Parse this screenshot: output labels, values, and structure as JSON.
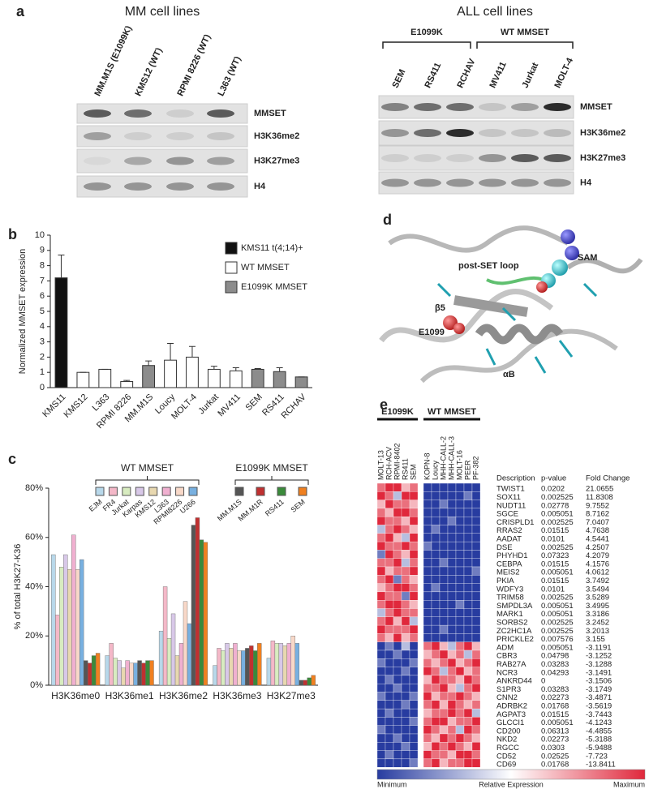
{
  "panel_a": {
    "label": "a",
    "mm": {
      "title": "MM cell lines",
      "lanes": [
        "MM.M1S (E1099K)",
        "KMS12 (WT)",
        "RPMI 8226 (WT)",
        "L363 (WT)"
      ],
      "rows": [
        "MMSET",
        "H3K36me2",
        "H3K27me3",
        "H4"
      ]
    },
    "all": {
      "title": "ALL cell lines",
      "groups": [
        {
          "title": "E1099K",
          "lanes": [
            "SEM",
            "RS411",
            "RCHAV"
          ]
        },
        {
          "title": "WT MMSET",
          "lanes": [
            "MV411",
            "Jurkat",
            "MOLT-4"
          ]
        }
      ],
      "rows": [
        "MMSET",
        "H3K36me2",
        "H3K27me3",
        "H4"
      ]
    }
  },
  "chart_data": [
    {
      "type": "bar",
      "label": "b",
      "ylabel": "Normalized MMSET expression",
      "categories": [
        "KMS11",
        "KMS12",
        "L363",
        "RPMI 8226",
        "MM.M1S",
        "Loucy",
        "MOLT-4",
        "Jurkat",
        "MV411",
        "SEM",
        "RS411",
        "RCHAV"
      ],
      "series": [
        {
          "name": "KMS11 t(4;14)+",
          "color": "#111111",
          "values": [
            7.2,
            null,
            null,
            null,
            null,
            null,
            null,
            null,
            null,
            null,
            null,
            null
          ],
          "errors": [
            1.5,
            null,
            null,
            null,
            null,
            null,
            null,
            null,
            null,
            null,
            null,
            null
          ]
        },
        {
          "name": "WT MMSET",
          "color": "#ffffff",
          "values": [
            null,
            1.0,
            1.2,
            0.4,
            null,
            1.8,
            2.0,
            1.2,
            1.1,
            null,
            null,
            null
          ],
          "errors": [
            null,
            0,
            0,
            0.07,
            null,
            1.1,
            0.7,
            0.2,
            0.2,
            null,
            null,
            null
          ]
        },
        {
          "name": "E1099K MMSET",
          "color": "#8c8c8c",
          "values": [
            null,
            null,
            null,
            null,
            1.45,
            null,
            null,
            null,
            null,
            1.2,
            1.05,
            0.7
          ],
          "errors": [
            null,
            null,
            null,
            null,
            0.3,
            null,
            null,
            null,
            null,
            0.05,
            0.25,
            0
          ]
        }
      ],
      "ylim": [
        0,
        10
      ],
      "yticks": [
        0,
        1,
        2,
        3,
        4,
        5,
        6,
        7,
        8,
        9,
        10
      ]
    },
    {
      "type": "bar",
      "label": "c",
      "ylabel": "% of total H3K27-K36",
      "categories": [
        "H3K36me0",
        "H3K36me1",
        "H3K36me2",
        "H3K36me3",
        "H3K27me3"
      ],
      "series_groups": [
        {
          "title": "WT MMSET",
          "series": [
            {
              "name": "EJM",
              "color": "#b8d8ea",
              "values": [
                53,
                12,
                22,
                8,
                11
              ]
            },
            {
              "name": "FR4",
              "color": "#f4b8c8",
              "values": [
                28.5,
                17,
                40,
                15,
                18
              ]
            },
            {
              "name": "Jurkat",
              "color": "#d8ecc0",
              "values": [
                48,
                11,
                19,
                14,
                17
              ]
            },
            {
              "name": "Karpas",
              "color": "#d8c8e8",
              "values": [
                53,
                10,
                29,
                17,
                17
              ]
            },
            {
              "name": "KMS12",
              "color": "#e8d8b0",
              "values": [
                47,
                7,
                12,
                15,
                16
              ]
            },
            {
              "name": "L363",
              "color": "#f0b0d0",
              "values": [
                61,
                10,
                17,
                17,
                17
              ]
            },
            {
              "name": "RPMI8226",
              "color": "#f8d8c8",
              "values": [
                47,
                9,
                34,
                14,
                20
              ]
            },
            {
              "name": "U266",
              "color": "#78b0e0",
              "values": [
                51,
                9,
                25,
                14,
                17
              ]
            }
          ]
        },
        {
          "title": "E1099K MMSET",
          "series": [
            {
              "name": "MM.M1S",
              "color": "#555555",
              "values": [
                10,
                10,
                65,
                15,
                2
              ]
            },
            {
              "name": "MM.M1R",
              "color": "#c03030",
              "values": [
                9,
                9,
                68,
                16,
                2
              ]
            },
            {
              "name": "RS411",
              "color": "#3a8a3a",
              "values": [
                12,
                10,
                59,
                14,
                3
              ]
            },
            {
              "name": "SEM",
              "color": "#f08020",
              "values": [
                13,
                10,
                58,
                17,
                4
              ]
            }
          ]
        }
      ],
      "ylim": [
        0,
        80
      ],
      "yticks": [
        {
          "value": 0,
          "label": "0%"
        },
        {
          "value": 20,
          "label": "20%"
        },
        {
          "value": 40,
          "label": "40%"
        },
        {
          "value": 60,
          "label": "60%"
        },
        {
          "value": 80,
          "label": "80%"
        }
      ]
    },
    {
      "type": "heatmap",
      "label": "e",
      "column_groups": [
        {
          "title": "E1099K",
          "columns": [
            "MOLT-13",
            "RCH-ACV",
            "RPMI-8402",
            "RS411",
            "SEM"
          ]
        },
        {
          "title": "WT MMSET",
          "columns": [
            "KOPN-8",
            "Loucy",
            "MHH-CALL-2",
            "MHH-CALL-3",
            "MOLT-16",
            "PEER",
            "PF-382"
          ]
        }
      ],
      "headers": [
        "Description",
        "p-value",
        "Fold Change"
      ],
      "rows": [
        {
          "gene": "TWIST1",
          "p_value": 0.0202,
          "fold_change": 21.0655
        },
        {
          "gene": "SOX11",
          "p_value": 0.002525,
          "fold_change": 11.8308
        },
        {
          "gene": "NUDT11",
          "p_value": 0.02778,
          "fold_change": 9.7552
        },
        {
          "gene": "SGCE",
          "p_value": 0.005051,
          "fold_change": 8.7162
        },
        {
          "gene": "CRISPLD1",
          "p_value": 0.002525,
          "fold_change": 7.0407
        },
        {
          "gene": "RRAS2",
          "p_value": 0.01515,
          "fold_change": 4.7638
        },
        {
          "gene": "AADAT",
          "p_value": 0.0101,
          "fold_change": 4.5441
        },
        {
          "gene": "DSE",
          "p_value": 0.002525,
          "fold_change": 4.2507
        },
        {
          "gene": "PHYHD1",
          "p_value": 0.07323,
          "fold_change": 4.2079
        },
        {
          "gene": "CEBPA",
          "p_value": 0.01515,
          "fold_change": 4.1576
        },
        {
          "gene": "MEIS2",
          "p_value": 0.005051,
          "fold_change": 4.0612
        },
        {
          "gene": "PKIA",
          "p_value": 0.01515,
          "fold_change": 3.7492
        },
        {
          "gene": "WDFY3",
          "p_value": 0.0101,
          "fold_change": 3.5494
        },
        {
          "gene": "TRIM58",
          "p_value": 0.002525,
          "fold_change": 3.5289
        },
        {
          "gene": "SMPDL3A",
          "p_value": 0.005051,
          "fold_change": 3.4995
        },
        {
          "gene": "MARK1",
          "p_value": 0.005051,
          "fold_change": 3.3186
        },
        {
          "gene": "SORBS2",
          "p_value": 0.002525,
          "fold_change": 3.2452
        },
        {
          "gene": "ZC2HC1A",
          "p_value": 0.002525,
          "fold_change": 3.2013
        },
        {
          "gene": "PRICKLE2",
          "p_value": 0.007576,
          "fold_change": 3.155
        },
        {
          "gene": "ADM",
          "p_value": 0.005051,
          "fold_change": -3.1191
        },
        {
          "gene": "CBR3",
          "p_value": 0.04798,
          "fold_change": -3.1252
        },
        {
          "gene": "RAB27A",
          "p_value": 0.03283,
          "fold_change": -3.1288
        },
        {
          "gene": "NCR3",
          "p_value": 0.04293,
          "fold_change": -3.1491
        },
        {
          "gene": "ANKRD44",
          "p_value": 0,
          "fold_change": -3.1506
        },
        {
          "gene": "S1PR3",
          "p_value": 0.03283,
          "fold_change": -3.1749
        },
        {
          "gene": "CNN2",
          "p_value": 0.02273,
          "fold_change": -3.4871
        },
        {
          "gene": "ADRBK2",
          "p_value": 0.01768,
          "fold_change": -3.5619
        },
        {
          "gene": "AGPAT3",
          "p_value": 0.01515,
          "fold_change": -3.7443
        },
        {
          "gene": "GLCCI1",
          "p_value": 0.005051,
          "fold_change": -4.1243
        },
        {
          "gene": "CD200",
          "p_value": 0.06313,
          "fold_change": -4.4855
        },
        {
          "gene": "NKD2",
          "p_value": 0.02273,
          "fold_change": -5.3188
        },
        {
          "gene": "RGCC",
          "p_value": 0.0303,
          "fold_change": -5.9488
        },
        {
          "gene": "CD52",
          "p_value": 0.02525,
          "fold_change": -7.723
        },
        {
          "gene": "CD69",
          "p_value": 0.01768,
          "fold_change": -13.8411
        }
      ],
      "values": [
        [
          2,
          3,
          3,
          1,
          2,
          -3,
          -3,
          -3,
          -3,
          -3,
          -3,
          -3
        ],
        [
          3,
          2,
          -1,
          3,
          3,
          -3,
          -3,
          -3,
          -3,
          -3,
          -2,
          -3
        ],
        [
          1,
          3,
          2,
          2,
          1,
          -3,
          -3,
          -2,
          -3,
          -3,
          -3,
          -3
        ],
        [
          2,
          1,
          3,
          3,
          2,
          -3,
          -3,
          -3,
          -3,
          -3,
          -3,
          -3
        ],
        [
          3,
          2,
          2,
          1,
          3,
          -3,
          -3,
          -3,
          -2,
          -3,
          -3,
          -3
        ],
        [
          -1,
          2,
          3,
          2,
          1,
          -3,
          -2,
          -3,
          -3,
          -3,
          -3,
          -3
        ],
        [
          2,
          3,
          1,
          -1,
          3,
          -3,
          -3,
          -3,
          -3,
          -3,
          -3,
          -3
        ],
        [
          3,
          2,
          2,
          3,
          2,
          -2,
          -3,
          -3,
          -3,
          -3,
          -3,
          -3
        ],
        [
          -2,
          3,
          2,
          1,
          3,
          -3,
          -3,
          -3,
          -3,
          -3,
          -3,
          -3
        ],
        [
          2,
          2,
          3,
          -1,
          2,
          -3,
          -3,
          -2,
          -3,
          -3,
          -3,
          -3
        ],
        [
          3,
          1,
          2,
          2,
          3,
          -3,
          -3,
          -3,
          -3,
          -3,
          -3,
          -2
        ],
        [
          2,
          3,
          -2,
          2,
          1,
          -3,
          -3,
          -3,
          -3,
          -3,
          -3,
          -3
        ],
        [
          1,
          2,
          3,
          3,
          2,
          -3,
          -2,
          -3,
          -3,
          -3,
          -3,
          -3
        ],
        [
          3,
          2,
          2,
          -2,
          3,
          -3,
          -3,
          -3,
          -3,
          -3,
          -3,
          -3
        ],
        [
          2,
          3,
          3,
          2,
          1,
          -3,
          -3,
          -3,
          -3,
          -2,
          -3,
          -3
        ],
        [
          -1,
          2,
          3,
          2,
          2,
          -3,
          -3,
          -3,
          -3,
          -3,
          -3,
          -3
        ],
        [
          2,
          3,
          1,
          3,
          -1,
          -3,
          -3,
          -3,
          -3,
          -3,
          -3,
          -3
        ],
        [
          3,
          2,
          2,
          2,
          3,
          -3,
          -3,
          -2,
          -3,
          -3,
          -3,
          -3
        ],
        [
          2,
          1,
          3,
          1,
          2,
          -3,
          -3,
          -3,
          -3,
          -3,
          -3,
          -3
        ],
        [
          -3,
          -2,
          -3,
          -1,
          -3,
          2,
          3,
          1,
          -1,
          2,
          3,
          1
        ],
        [
          -3,
          -3,
          -2,
          -3,
          -3,
          1,
          2,
          3,
          1,
          2,
          -1,
          2
        ],
        [
          -2,
          -3,
          -3,
          -3,
          -2,
          2,
          1,
          2,
          3,
          1,
          2,
          3
        ],
        [
          -3,
          -3,
          -3,
          -2,
          -3,
          3,
          2,
          -1,
          2,
          3,
          1,
          2
        ],
        [
          -3,
          -2,
          -3,
          -3,
          -3,
          1,
          3,
          2,
          2,
          1,
          3,
          2
        ],
        [
          -3,
          -3,
          -2,
          -3,
          -3,
          2,
          2,
          3,
          1,
          -1,
          2,
          3
        ],
        [
          -2,
          -3,
          -3,
          -3,
          -2,
          3,
          1,
          2,
          2,
          3,
          2,
          1
        ],
        [
          -3,
          -3,
          -3,
          -2,
          -3,
          2,
          3,
          1,
          3,
          2,
          1,
          2
        ],
        [
          -3,
          -2,
          -3,
          -3,
          -3,
          1,
          2,
          2,
          3,
          2,
          3,
          -1
        ],
        [
          -3,
          -3,
          -3,
          -3,
          -2,
          2,
          3,
          3,
          1,
          2,
          2,
          3
        ],
        [
          -2,
          -3,
          -3,
          -3,
          -3,
          3,
          2,
          1,
          2,
          -1,
          3,
          2
        ],
        [
          -3,
          -3,
          -2,
          -3,
          -3,
          2,
          1,
          3,
          2,
          3,
          2,
          1
        ],
        [
          -3,
          -3,
          -3,
          -2,
          -3,
          1,
          3,
          2,
          3,
          2,
          1,
          3
        ],
        [
          -3,
          -2,
          -3,
          -3,
          -3,
          3,
          2,
          2,
          1,
          3,
          3,
          2
        ],
        [
          -3,
          -3,
          -3,
          -3,
          -2,
          2,
          3,
          1,
          2,
          2,
          3,
          3
        ]
      ],
      "zlim": [
        -3,
        3
      ],
      "colors": [
        "#283ca0",
        "#ffffff",
        "#e0283c"
      ],
      "colorbar_labels": [
        "Minimum",
        "Relative Expression",
        "Maximum"
      ]
    }
  ],
  "panel_d": {
    "label": "d",
    "labels": [
      "post-SET loop",
      "SAM",
      "β5",
      "E1099",
      "αB"
    ]
  }
}
